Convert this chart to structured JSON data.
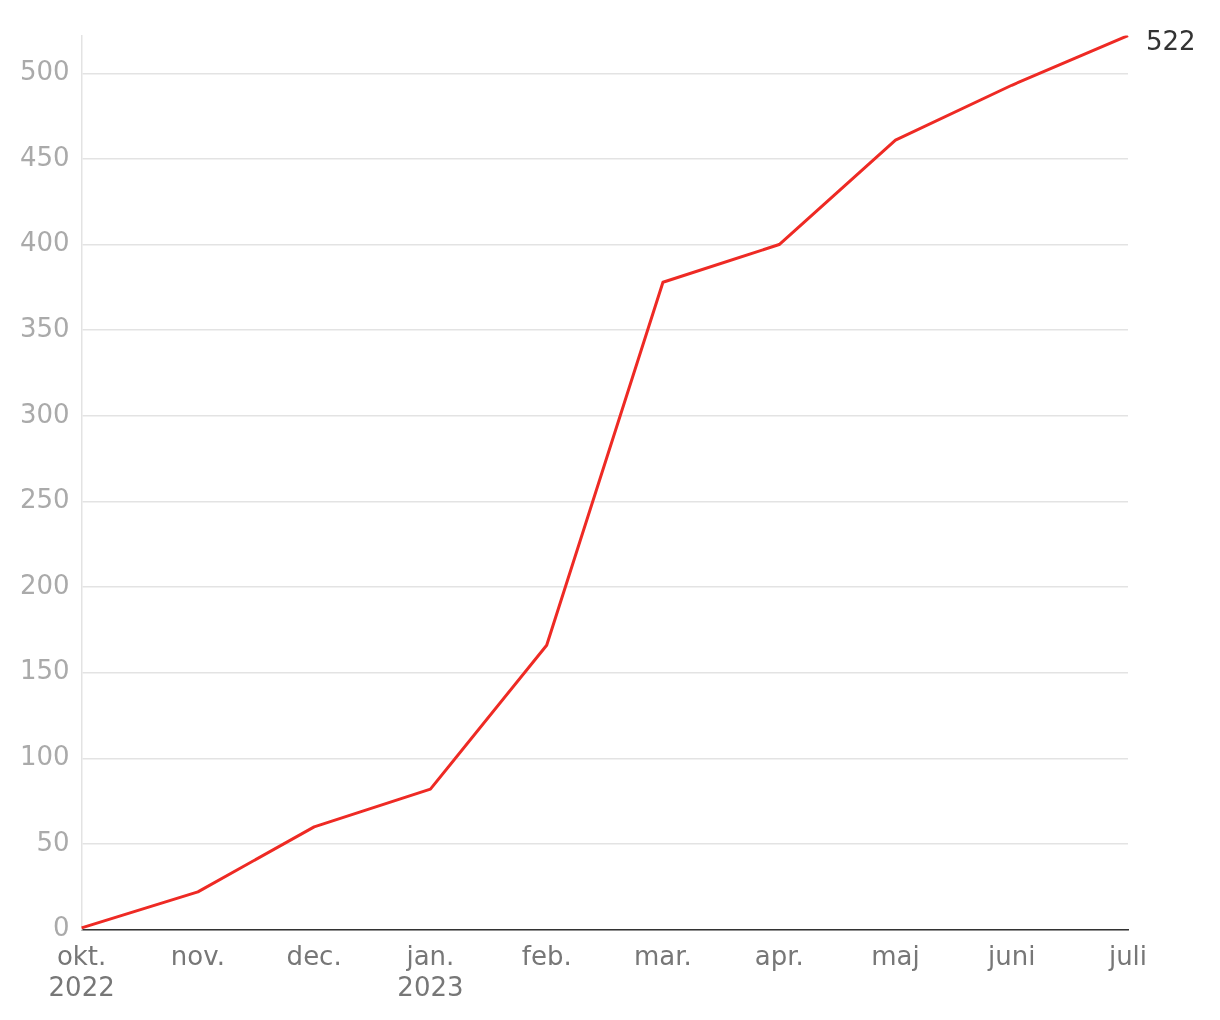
{
  "chart_data": {
    "type": "line",
    "categories": [
      "okt.\n2022",
      "nov.",
      "dec.",
      "jan.\n2023",
      "feb.",
      "mar.",
      "apr.",
      "maj",
      "juni",
      "juli"
    ],
    "series": [
      {
        "color": "#ee2a24",
        "values": [
          1,
          22,
          60,
          82,
          166,
          378,
          400,
          461,
          493,
          522
        ],
        "value_labels": [
          null,
          null,
          null,
          null,
          null,
          null,
          null,
          null,
          null,
          "522"
        ]
      }
    ],
    "ylim": [
      0,
      522
    ],
    "yticks": [
      0,
      50,
      100,
      150,
      200,
      250,
      300,
      350,
      400,
      450,
      500
    ],
    "grid": "y",
    "legend": false,
    "marker": "none",
    "line_style": "solid"
  }
}
